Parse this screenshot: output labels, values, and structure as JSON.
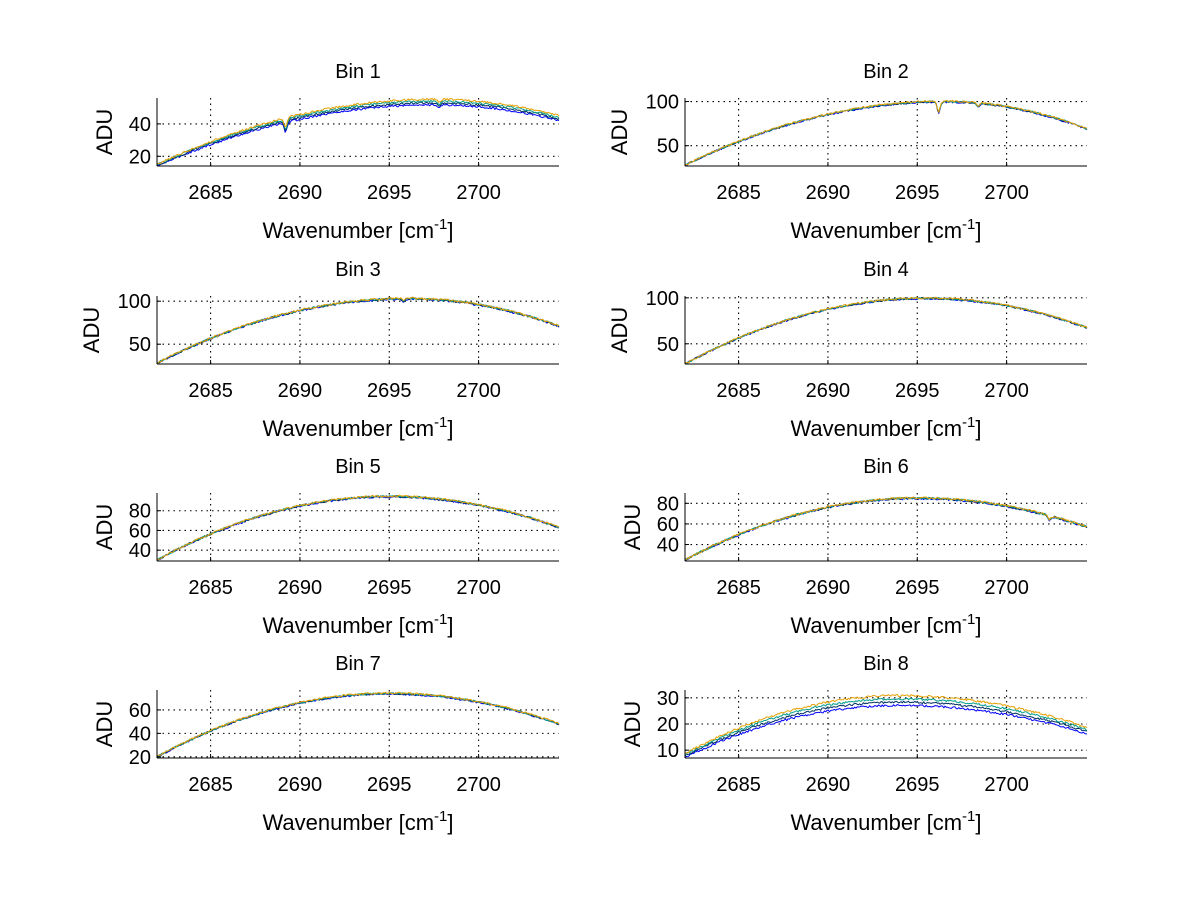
{
  "chart_data": [
    {
      "type": "line",
      "title": "Bin 1",
      "xlabel": "Wavenumber [cm",
      "xlabel_sup": "-1",
      "xlabel_end": "]",
      "ylabel": "ADU",
      "xlim": [
        2682,
        2704.5
      ],
      "ylim": [
        14,
        56
      ],
      "xticks": [
        2685,
        2690,
        2695,
        2700
      ],
      "yticks": [
        20,
        40
      ],
      "curve": {
        "peak_x": 2697.5,
        "peak_y": 53.5,
        "start_y": 14.5,
        "end_y": 43.5,
        "noise": 0.6,
        "spread": 1.2,
        "dips": [
          {
            "x": 2689.2,
            "depth": 6
          },
          {
            "x": 2697.8,
            "depth": 2
          }
        ]
      },
      "series_colors": [
        "#0000ff",
        "#003060",
        "#009e8a",
        "#e69f00"
      ]
    },
    {
      "type": "line",
      "title": "Bin 2",
      "xlabel": "Wavenumber [cm",
      "xlabel_sup": "-1",
      "xlabel_end": "]",
      "ylabel": "ADU",
      "xlim": [
        2682,
        2704.5
      ],
      "ylim": [
        27,
        104
      ],
      "xticks": [
        2685,
        2690,
        2695,
        2700
      ],
      "yticks": [
        50,
        100
      ],
      "curve": {
        "peak_x": 2696.5,
        "peak_y": 100,
        "start_y": 28,
        "end_y": 69,
        "noise": 1.0,
        "spread": 0.4,
        "dips": [
          {
            "x": 2696.2,
            "depth": 12
          },
          {
            "x": 2698.4,
            "depth": 4
          }
        ]
      },
      "series_colors": [
        "#0000ff",
        "#003060",
        "#009e8a",
        "#e69f00"
      ]
    },
    {
      "type": "line",
      "title": "Bin 3",
      "xlabel": "Wavenumber [cm",
      "xlabel_sup": "-1",
      "xlabel_end": "]",
      "ylabel": "ADU",
      "xlim": [
        2682,
        2704.5
      ],
      "ylim": [
        27,
        106
      ],
      "xticks": [
        2685,
        2690,
        2695,
        2700
      ],
      "yticks": [
        50,
        100
      ],
      "curve": {
        "peak_x": 2696,
        "peak_y": 103,
        "start_y": 28,
        "end_y": 71,
        "noise": 1.2,
        "spread": 0.3,
        "dips": [
          {
            "x": 2695.8,
            "depth": 3
          }
        ]
      },
      "series_colors": [
        "#0000ff",
        "#003060",
        "#009e8a",
        "#e69f00"
      ]
    },
    {
      "type": "line",
      "title": "Bin 4",
      "xlabel": "Wavenumber [cm",
      "xlabel_sup": "-1",
      "xlabel_end": "]",
      "ylabel": "ADU",
      "xlim": [
        2682,
        2704.5
      ],
      "ylim": [
        28,
        102
      ],
      "xticks": [
        2685,
        2690,
        2695,
        2700
      ],
      "yticks": [
        50,
        100
      ],
      "curve": {
        "peak_x": 2695.5,
        "peak_y": 99.5,
        "start_y": 28,
        "end_y": 67.5,
        "noise": 1.0,
        "spread": 0.3,
        "dips": []
      },
      "series_colors": [
        "#0000ff",
        "#003060",
        "#009e8a",
        "#e69f00"
      ]
    },
    {
      "type": "line",
      "title": "Bin 5",
      "xlabel": "Wavenumber [cm",
      "xlabel_sup": "-1",
      "xlabel_end": "]",
      "ylabel": "ADU",
      "xlim": [
        2682,
        2704.5
      ],
      "ylim": [
        29,
        98
      ],
      "xticks": [
        2685,
        2690,
        2695,
        2700
      ],
      "yticks": [
        40,
        60,
        80
      ],
      "curve": {
        "peak_x": 2695,
        "peak_y": 94.5,
        "start_y": 30,
        "end_y": 63,
        "noise": 1.0,
        "spread": 0.3,
        "dips": []
      },
      "series_colors": [
        "#0000ff",
        "#003060",
        "#009e8a",
        "#e69f00"
      ]
    },
    {
      "type": "line",
      "title": "Bin 6",
      "xlabel": "Wavenumber [cm",
      "xlabel_sup": "-1",
      "xlabel_end": "]",
      "ylabel": "ADU",
      "xlim": [
        2682,
        2704.5
      ],
      "ylim": [
        24,
        90
      ],
      "xticks": [
        2685,
        2690,
        2695,
        2700
      ],
      "yticks": [
        40,
        60,
        80
      ],
      "curve": {
        "peak_x": 2695,
        "peak_y": 85,
        "start_y": 25,
        "end_y": 57,
        "noise": 1.0,
        "spread": 0.3,
        "dips": [
          {
            "x": 2702.4,
            "depth": 4
          }
        ]
      },
      "series_colors": [
        "#0000ff",
        "#003060",
        "#009e8a",
        "#e69f00"
      ]
    },
    {
      "type": "line",
      "title": "Bin 7",
      "xlabel": "Wavenumber [cm",
      "xlabel_sup": "-1",
      "xlabel_end": "]",
      "ylabel": "ADU",
      "xlim": [
        2682,
        2704.5
      ],
      "ylim": [
        19,
        77
      ],
      "xticks": [
        2685,
        2690,
        2695,
        2700
      ],
      "yticks": [
        20,
        40,
        60
      ],
      "curve": {
        "peak_x": 2695,
        "peak_y": 74,
        "start_y": 20,
        "end_y": 48,
        "noise": 0.8,
        "spread": 0.3,
        "dips": []
      },
      "series_colors": [
        "#0000ff",
        "#003060",
        "#009e8a",
        "#e69f00"
      ]
    },
    {
      "type": "line",
      "title": "Bin 8",
      "xlabel": "Wavenumber [cm",
      "xlabel_sup": "-1",
      "xlabel_end": "]",
      "ylabel": "ADU",
      "xlim": [
        2682,
        2704.5
      ],
      "ylim": [
        7,
        33
      ],
      "xticks": [
        2685,
        2690,
        2695,
        2700
      ],
      "yticks": [
        10,
        20,
        30
      ],
      "curve": {
        "peak_x": 2694,
        "peak_y": 29,
        "start_y": 8,
        "end_y": 17.5,
        "noise": 0.4,
        "spread": 1.4,
        "dips": []
      },
      "series_colors": [
        "#0000ff",
        "#003060",
        "#009e8a",
        "#e69f00"
      ]
    }
  ]
}
